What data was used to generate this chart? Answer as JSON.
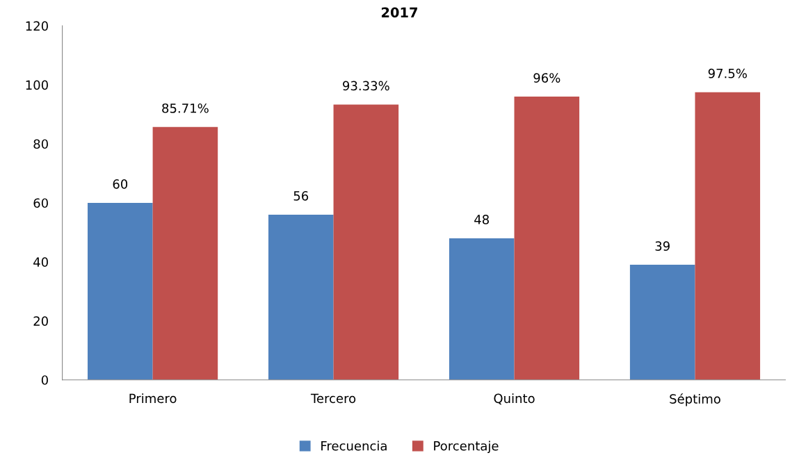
{
  "chart_data": {
    "type": "bar",
    "title": "2017",
    "categories": [
      "Primero",
      "Tercero",
      "Quinto",
      "Séptimo"
    ],
    "series": [
      {
        "name": "Frecuencia",
        "color": "#4f81bd",
        "values": [
          60,
          56,
          48,
          39
        ],
        "value_labels": [
          "60",
          "56",
          "48",
          "39"
        ]
      },
      {
        "name": "Porcentaje",
        "color": "#c0504d",
        "values": [
          85.71,
          93.33,
          96,
          97.5
        ],
        "value_labels": [
          "85.71%",
          "93.33%",
          "96%",
          "97.5%"
        ]
      }
    ],
    "ylim": [
      0,
      120
    ],
    "yticks": [
      0,
      20,
      40,
      60,
      80,
      100,
      120
    ],
    "grid": false,
    "legend": "bottom"
  }
}
